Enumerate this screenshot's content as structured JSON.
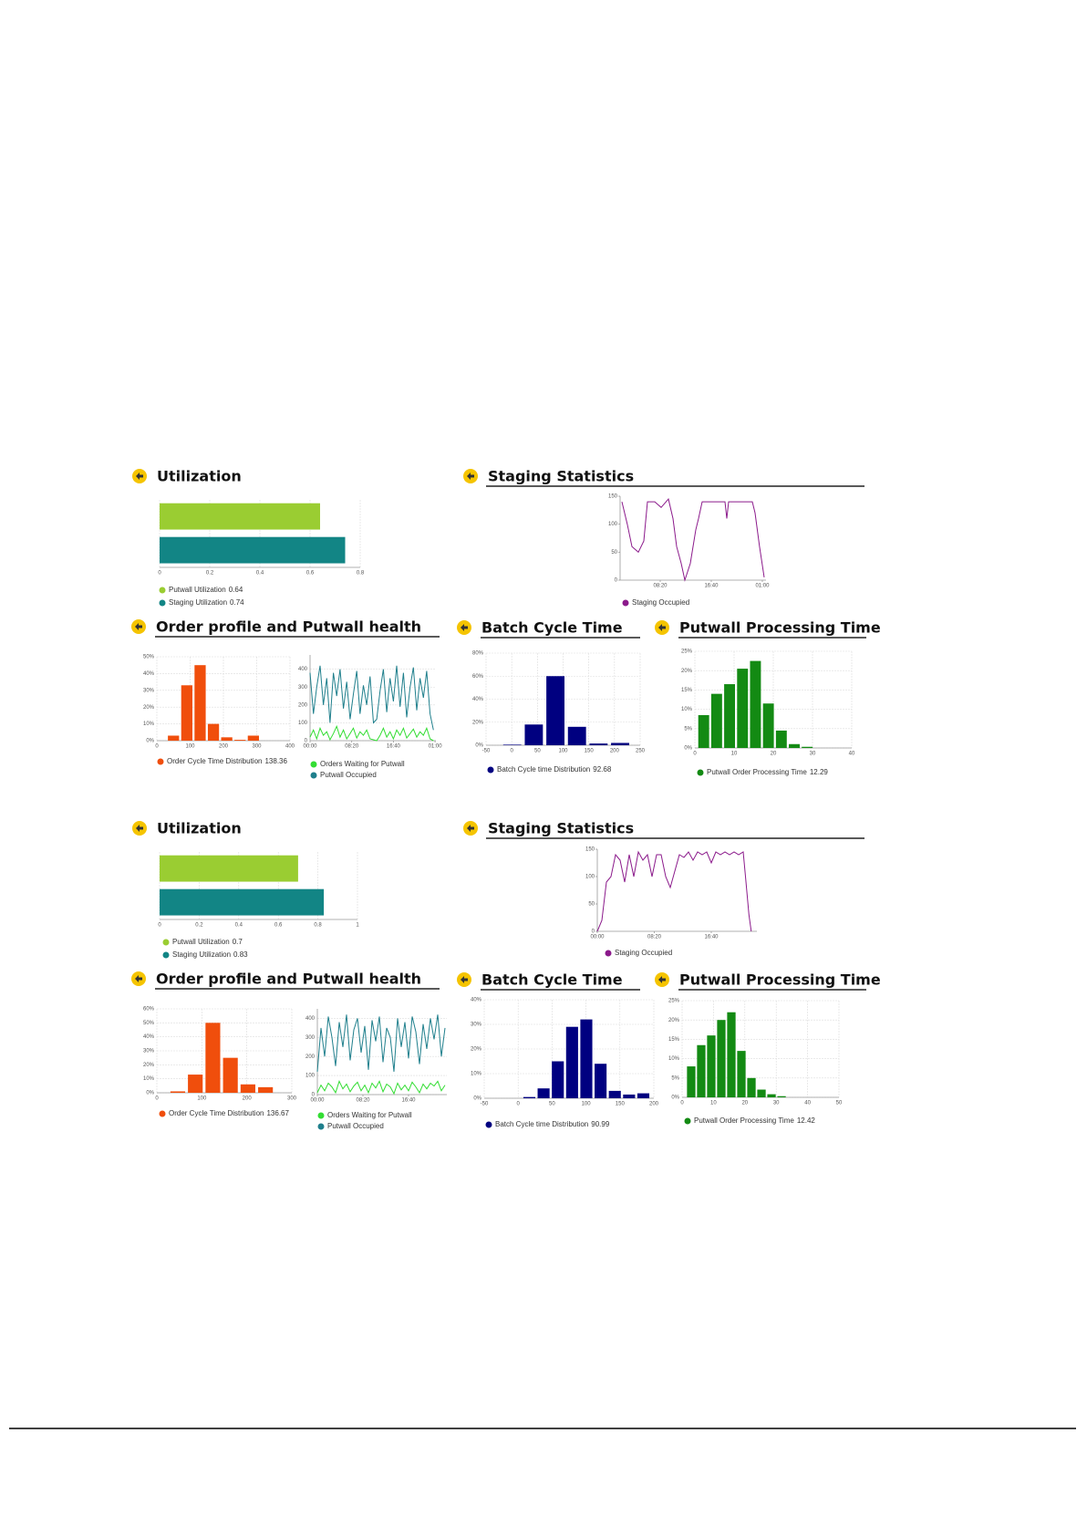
{
  "headers": [
    "Utilization",
    "Staging Statistics",
    "Order profile and Putwall health",
    "Batch Cycle Time",
    "Putwall Processing Time",
    "Utilization",
    "Staging Statistics",
    "Order profile and Putwall health",
    "Batch Cycle Time",
    "Putwall Processing Time"
  ],
  "chart_data": [
    {
      "type": "hbar",
      "categories": [
        "Putwall Utilization",
        "Staging Utilization"
      ],
      "values": [
        0.64,
        0.74
      ],
      "colors": [
        "#9acd32",
        "#128585"
      ],
      "value_color": "#3a7bd5",
      "xlim": [
        0,
        0.8
      ],
      "xticks": [
        0,
        0.2,
        0.4,
        0.6,
        0.8
      ],
      "grid": true
    },
    {
      "type": "line",
      "series": [
        {
          "name": "Staging Occupied",
          "color": "#8b1a8b",
          "x": [
            125,
            178,
            223,
            286,
            339,
            375,
            446,
            509,
            580,
            625,
            661,
            705,
            741,
            795,
            848,
            875,
            911,
            1134,
            1152,
            1170,
            1402,
            1429,
            1473,
            1518
          ],
          "values": [
            140,
            100,
            60,
            50,
            70,
            140,
            140,
            130,
            145,
            110,
            60,
            30,
            0,
            30,
            90,
            110,
            140,
            140,
            110,
            140,
            140,
            120,
            60,
            5
          ]
        }
      ],
      "xlim": [
        107,
        1536
      ],
      "xticks": [
        {
          "value": 500,
          "label": "08:20"
        },
        {
          "value": 1000,
          "label": "16:40"
        },
        {
          "value": 1500,
          "label": "01:00"
        }
      ],
      "ylim": [
        0,
        150
      ],
      "yticks": [
        0,
        50,
        100,
        150
      ],
      "grid": false
    },
    {
      "type": "histogram",
      "name": "Order Cycle Time Distribution",
      "legend_value": 138.36,
      "value_color": "#b05bd0",
      "color": "#f04e0c",
      "bins": [
        30,
        70,
        110,
        150,
        190,
        230,
        270,
        310
      ],
      "values": [
        3,
        33,
        45,
        10,
        2,
        0.5,
        3
      ],
      "xlim": [
        0,
        400
      ],
      "xticks": [
        0,
        100,
        200,
        300,
        400
      ],
      "ylim": [
        0,
        50
      ],
      "yticks": [
        {
          "value": 0,
          "label": "0%"
        },
        {
          "value": 10,
          "label": "10%"
        },
        {
          "value": 20,
          "label": "20%"
        },
        {
          "value": 30,
          "label": "30%"
        },
        {
          "value": 40,
          "label": "40%"
        },
        {
          "value": 50,
          "label": "50%"
        }
      ],
      "grid": true
    },
    {
      "type": "line",
      "series": [
        {
          "name": "Orders Waiting for Putwall",
          "color": "#33dd33",
          "x": [
            0,
            40,
            80,
            120,
            160,
            200,
            240,
            280,
            320,
            360,
            400,
            440,
            480,
            520,
            560,
            600,
            640,
            680,
            720,
            760,
            800,
            840,
            880,
            920,
            960,
            1000,
            1040,
            1080,
            1120,
            1160,
            1200,
            1240,
            1280,
            1320,
            1360,
            1400,
            1440,
            1480
          ],
          "values": [
            20,
            60,
            10,
            70,
            30,
            50,
            5,
            40,
            80,
            20,
            60,
            10,
            40,
            70,
            15,
            50,
            30,
            60,
            10,
            5,
            0,
            30,
            70,
            20,
            50,
            10,
            60,
            30,
            70,
            15,
            40,
            65,
            20,
            50,
            30,
            70,
            10,
            0
          ]
        },
        {
          "name": "Putwall Occupied",
          "color": "#1f7f8c",
          "x": [
            0,
            40,
            80,
            120,
            160,
            200,
            240,
            280,
            320,
            360,
            400,
            440,
            480,
            520,
            560,
            600,
            640,
            680,
            720,
            760,
            800,
            840,
            880,
            920,
            960,
            1000,
            1040,
            1080,
            1120,
            1160,
            1200,
            1240,
            1280,
            1320,
            1360,
            1400,
            1440,
            1480
          ],
          "values": [
            380,
            150,
            300,
            420,
            200,
            350,
            100,
            380,
            250,
            400,
            180,
            330,
            120,
            260,
            390,
            150,
            310,
            200,
            360,
            100,
            120,
            280,
            400,
            160,
            350,
            220,
            420,
            190,
            380,
            130,
            300,
            410,
            170,
            350,
            240,
            390,
            150,
            60
          ]
        }
      ],
      "xlim": [
        0,
        1510
      ],
      "xticks": [
        {
          "value": 0,
          "label": "00:00"
        },
        {
          "value": 500,
          "label": "08:20"
        },
        {
          "value": 1000,
          "label": "16:40"
        },
        {
          "value": 1500,
          "label": "01:00"
        }
      ],
      "ylim": [
        0,
        480
      ],
      "yticks": [
        0,
        100,
        200,
        300,
        400
      ],
      "grid": true
    },
    {
      "type": "histogram",
      "name": "Batch Cycle time Distribution",
      "legend_value": 92.68,
      "value_color": "#b05bd0",
      "color": "#000080",
      "bins": [
        -20,
        22,
        64,
        106,
        148,
        190,
        232
      ],
      "values": [
        0.5,
        18,
        60,
        16,
        1.5,
        2
      ],
      "xlim": [
        -50,
        250
      ],
      "xticks": [
        -50,
        0,
        50,
        100,
        150,
        200,
        250
      ],
      "ylim": [
        0,
        80
      ],
      "yticks": [
        {
          "value": 0,
          "label": "0%"
        },
        {
          "value": 20,
          "label": "20%"
        },
        {
          "value": 40,
          "label": "40%"
        },
        {
          "value": 60,
          "label": "60%"
        },
        {
          "value": 80,
          "label": "80%"
        }
      ],
      "grid": true
    },
    {
      "type": "histogram",
      "name": "Putwall Order Processing Time",
      "legend_value": 12.29,
      "value_color": "#b05bd0",
      "color": "#138a13",
      "bins": [
        0.6,
        3.9,
        7.2,
        10.5,
        13.8,
        17.1,
        20.4,
        23.7,
        27,
        30.3
      ],
      "values": [
        8.5,
        14,
        16.5,
        20.5,
        22.5,
        11.5,
        4.5,
        1,
        0.3
      ],
      "xlim": [
        0,
        40
      ],
      "xticks": [
        0,
        10,
        20,
        30,
        40
      ],
      "ylim": [
        0,
        25
      ],
      "yticks": [
        {
          "value": 0,
          "label": "0%"
        },
        {
          "value": 5,
          "label": "5%"
        },
        {
          "value": 10,
          "label": "10%"
        },
        {
          "value": 15,
          "label": "15%"
        },
        {
          "value": 20,
          "label": "20%"
        },
        {
          "value": 25,
          "label": "25%"
        }
      ],
      "grid": true
    },
    {
      "type": "hbar",
      "categories": [
        "Putwall Utilization",
        "Staging Utilization"
      ],
      "values": [
        0.7,
        0.83
      ],
      "colors": [
        "#9acd32",
        "#128585"
      ],
      "value_color": "#3a7bd5",
      "xlim": [
        0,
        1
      ],
      "xticks": [
        0,
        0.2,
        0.4,
        0.6,
        0.8,
        1
      ],
      "grid": true
    },
    {
      "type": "line",
      "series": [
        {
          "name": "Staging Occupied",
          "color": "#8b1a8b",
          "x": [
            0,
            40,
            80,
            120,
            160,
            200,
            240,
            280,
            320,
            360,
            400,
            440,
            480,
            520,
            560,
            600,
            640,
            680,
            720,
            760,
            800,
            840,
            880,
            920,
            960,
            1000,
            1040,
            1080,
            1120,
            1160,
            1200,
            1240,
            1280,
            1300,
            1330,
            1350
          ],
          "values": [
            0,
            20,
            90,
            100,
            140,
            130,
            90,
            140,
            100,
            145,
            130,
            140,
            100,
            140,
            140,
            100,
            80,
            110,
            140,
            135,
            145,
            130,
            145,
            140,
            145,
            125,
            145,
            140,
            145,
            140,
            145,
            140,
            145,
            100,
            30,
            0
          ]
        }
      ],
      "xlim": [
        0,
        1400
      ],
      "xticks": [
        {
          "value": 0,
          "label": "00:00"
        },
        {
          "value": 500,
          "label": "08:20"
        },
        {
          "value": 1000,
          "label": "16:40"
        }
      ],
      "ylim": [
        0,
        150
      ],
      "yticks": [
        0,
        50,
        100,
        150
      ],
      "grid": false
    },
    {
      "type": "histogram",
      "name": "Order Cycle Time Distribution",
      "legend_value": 136.67,
      "value_color": "#b05bd0",
      "color": "#f04e0c",
      "bins": [
        27,
        66,
        105,
        144,
        183,
        222,
        261
      ],
      "values": [
        1,
        13,
        50,
        25,
        6,
        4
      ],
      "xlim": [
        0,
        300
      ],
      "xticks": [
        0,
        100,
        200,
        300
      ],
      "ylim": [
        0,
        60
      ],
      "yticks": [
        {
          "value": 0,
          "label": "0%"
        },
        {
          "value": 10,
          "label": "10%"
        },
        {
          "value": 20,
          "label": "20%"
        },
        {
          "value": 30,
          "label": "30%"
        },
        {
          "value": 40,
          "label": "40%"
        },
        {
          "value": 50,
          "label": "50%"
        },
        {
          "value": 60,
          "label": "60%"
        }
      ],
      "grid": true
    },
    {
      "type": "line",
      "series": [
        {
          "name": "Orders Waiting for Putwall",
          "color": "#33dd33",
          "x": [
            0,
            40,
            80,
            120,
            160,
            200,
            240,
            280,
            320,
            360,
            400,
            440,
            480,
            520,
            560,
            600,
            640,
            680,
            720,
            760,
            800,
            840,
            880,
            920,
            960,
            1000,
            1040,
            1080,
            1120,
            1160,
            1200,
            1240,
            1280,
            1320,
            1360,
            1400
          ],
          "values": [
            10,
            50,
            20,
            60,
            40,
            10,
            70,
            30,
            55,
            15,
            45,
            65,
            20,
            50,
            10,
            60,
            35,
            70,
            15,
            55,
            40,
            5,
            60,
            25,
            50,
            20,
            65,
            40,
            10,
            55,
            30,
            60,
            45,
            70,
            20,
            50
          ]
        },
        {
          "name": "Putwall Occupied",
          "color": "#1f7f8c",
          "x": [
            0,
            40,
            80,
            120,
            160,
            200,
            240,
            280,
            320,
            360,
            400,
            440,
            480,
            520,
            560,
            600,
            640,
            680,
            720,
            760,
            800,
            840,
            880,
            920,
            960,
            1000,
            1040,
            1080,
            1120,
            1160,
            1200,
            1240,
            1280,
            1320,
            1360,
            1400
          ],
          "values": [
            120,
            350,
            200,
            410,
            300,
            150,
            380,
            250,
            420,
            180,
            340,
            400,
            220,
            360,
            130,
            390,
            280,
            410,
            170,
            350,
            300,
            120,
            400,
            250,
            380,
            190,
            410,
            330,
            160,
            370,
            240,
            400,
            290,
            420,
            200,
            350
          ]
        }
      ],
      "xlim": [
        0,
        1420
      ],
      "xticks": [
        {
          "value": 0,
          "label": "00:00"
        },
        {
          "value": 500,
          "label": "08:20"
        },
        {
          "value": 1000,
          "label": "16:40"
        }
      ],
      "ylim": [
        0,
        450
      ],
      "yticks": [
        0,
        100,
        200,
        300,
        400
      ],
      "grid": true
    },
    {
      "type": "histogram",
      "name": "Batch Cycle time Distribution",
      "legend_value": 90.99,
      "value_color": "#b05bd0",
      "color": "#000080",
      "bins": [
        6,
        27,
        48,
        69,
        90,
        111,
        132,
        153,
        174,
        195
      ],
      "values": [
        0.5,
        4,
        15,
        29,
        32,
        14,
        3,
        1.5,
        2
      ],
      "xlim": [
        -50,
        200
      ],
      "xticks": [
        -50,
        0,
        50,
        100,
        150,
        200
      ],
      "ylim": [
        0,
        40
      ],
      "yticks": [
        {
          "value": 0,
          "label": "0%"
        },
        {
          "value": 10,
          "label": "10%"
        },
        {
          "value": 20,
          "label": "20%"
        },
        {
          "value": 30,
          "label": "30%"
        },
        {
          "value": 40,
          "label": "40%"
        }
      ],
      "grid": true
    },
    {
      "type": "histogram",
      "name": "Putwall Order Processing Time",
      "legend_value": 12.42,
      "value_color": "#b05bd0",
      "color": "#138a13",
      "bins": [
        1.3,
        4.5,
        7.7,
        10.9,
        14.1,
        17.3,
        20.5,
        23.7,
        26.9,
        30.1,
        33.3
      ],
      "values": [
        8,
        13.5,
        16,
        20,
        22,
        12,
        5,
        2,
        0.8,
        0.3
      ],
      "xlim": [
        0,
        50
      ],
      "xticks": [
        0,
        10,
        20,
        30,
        40,
        50
      ],
      "ylim": [
        0,
        25
      ],
      "yticks": [
        {
          "value": 0,
          "label": "0%"
        },
        {
          "value": 5,
          "label": "5%"
        },
        {
          "value": 10,
          "label": "10%"
        },
        {
          "value": 15,
          "label": "15%"
        },
        {
          "value": 20,
          "label": "20%"
        },
        {
          "value": 25,
          "label": "25%"
        }
      ],
      "grid": true
    }
  ]
}
